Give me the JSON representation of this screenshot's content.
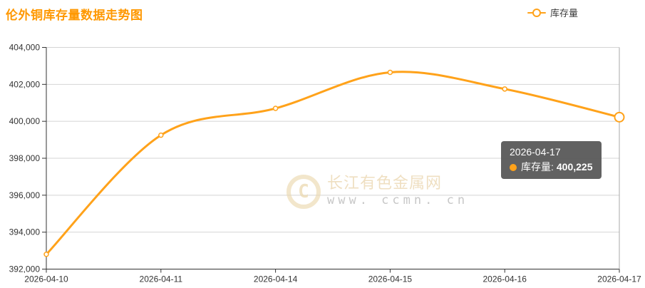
{
  "header": {
    "title": "伦外铜库存量数据走势图",
    "title_color": "#ff9800"
  },
  "legend": {
    "position": "top-right",
    "items": [
      {
        "label": "库存量",
        "color": "#ffa21a",
        "icon": "line-with-hollow-circle"
      }
    ]
  },
  "tooltip": {
    "title": "2026-04-17",
    "series_label": "库存量:",
    "value": "400,225",
    "marker_color": "#ffa21a",
    "background": "rgba(88,88,88,0.95)",
    "text_color": "#ffffff"
  },
  "watermark": {
    "logo": "ccmn-circle-c-logo",
    "site_name": "长江有色金属网",
    "site_url": "www. ccmn. cn"
  },
  "colors": {
    "accent": "#ffa21a",
    "title": "#ff9800",
    "axis_label": "#333333",
    "axis_line": "#333333",
    "grid_line": "#d4d4d4",
    "pointer_line": "#aaaaaa",
    "marker_fill": "#ffffff"
  },
  "chart_data": {
    "type": "line",
    "title": "伦外铜库存量数据走势图",
    "categories": [
      "2026-04-10",
      "2026-04-11",
      "2026-04-14",
      "2026-04-15",
      "2026-04-16",
      "2026-04-17"
    ],
    "series": [
      {
        "name": "库存量",
        "values": [
          392800,
          399250,
          400700,
          402650,
          401750,
          400225
        ],
        "color": "#ffa21a",
        "smooth": true,
        "marker": "hollow-circle"
      }
    ],
    "ylim": [
      392000,
      404000
    ],
    "y_interval": 2000,
    "ytick_labels": [
      "392,000",
      "394,000",
      "396,000",
      "398,000",
      "400,000",
      "402,000",
      "404,000"
    ],
    "grid": "horizontal-only",
    "legend_position": "top-right",
    "highlight_index": 5,
    "axis_pointer": "vertical-line-at-2026-04-17"
  }
}
